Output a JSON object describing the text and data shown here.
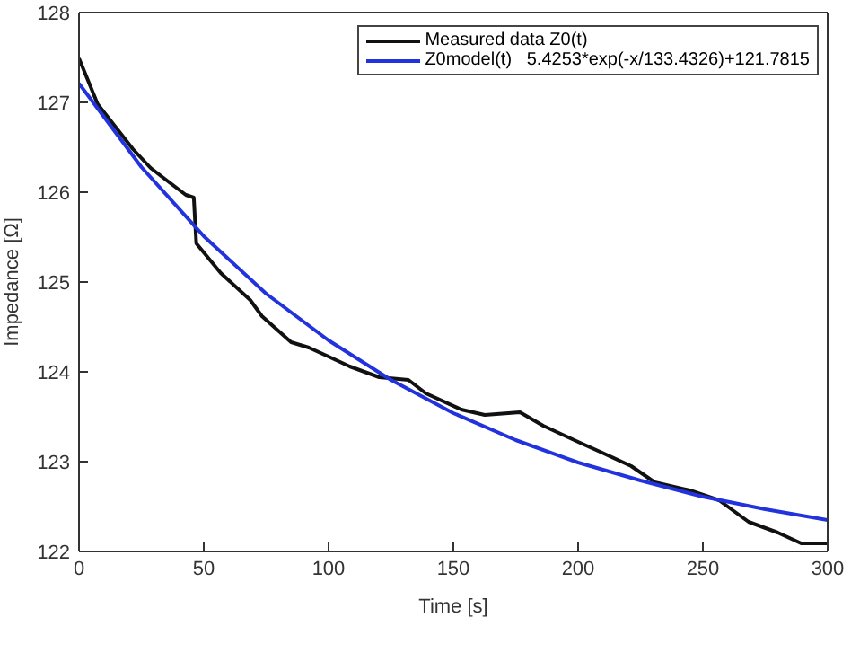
{
  "chart_data": {
    "type": "line",
    "xlabel": "Time [s]",
    "ylabel": "Impedance [Ω]",
    "xlim": [
      0,
      300
    ],
    "ylim": [
      122,
      128
    ],
    "xticks": [
      0,
      50,
      100,
      150,
      200,
      250,
      300
    ],
    "yticks": [
      122,
      123,
      124,
      125,
      126,
      127,
      128
    ],
    "grid": false,
    "legend": "top right",
    "marker": "none",
    "line_style": "solid",
    "series": [
      {
        "name": "Measured data Z0(t)",
        "color": "#111111",
        "x": [
          0,
          7.5,
          21.6,
          28.7,
          35.7,
          42.8,
          46,
          47,
          56.8,
          68.6,
          73.3,
          85,
          92.1,
          99.2,
          108.5,
          120.3,
          132,
          139,
          153.2,
          162.6,
          176.7,
          186,
          200,
          209.6,
          221.3,
          230.7,
          244.8,
          256.5,
          268.3,
          280,
          289.4,
          300
        ],
        "values": [
          127.49,
          126.98,
          126.48,
          126.27,
          126.12,
          125.97,
          125.94,
          125.43,
          125.1,
          124.8,
          124.62,
          124.33,
          124.27,
          124.18,
          124.06,
          123.94,
          123.91,
          123.76,
          123.58,
          123.52,
          123.55,
          123.4,
          123.22,
          123.1,
          122.95,
          122.77,
          122.68,
          122.57,
          122.33,
          122.21,
          122.09,
          122.09
        ]
      },
      {
        "name": "Z0model(t)   5.4253*exp(-x/133.4326)+121.7815",
        "color": "#2233dd",
        "x": [
          0,
          25,
          50,
          75,
          100,
          125,
          150,
          175,
          200,
          225,
          250,
          275,
          300
        ],
        "values": [
          127.21,
          126.28,
          125.51,
          124.87,
          124.35,
          123.91,
          123.54,
          123.24,
          122.99,
          122.79,
          122.61,
          122.47,
          122.35
        ]
      }
    ]
  }
}
